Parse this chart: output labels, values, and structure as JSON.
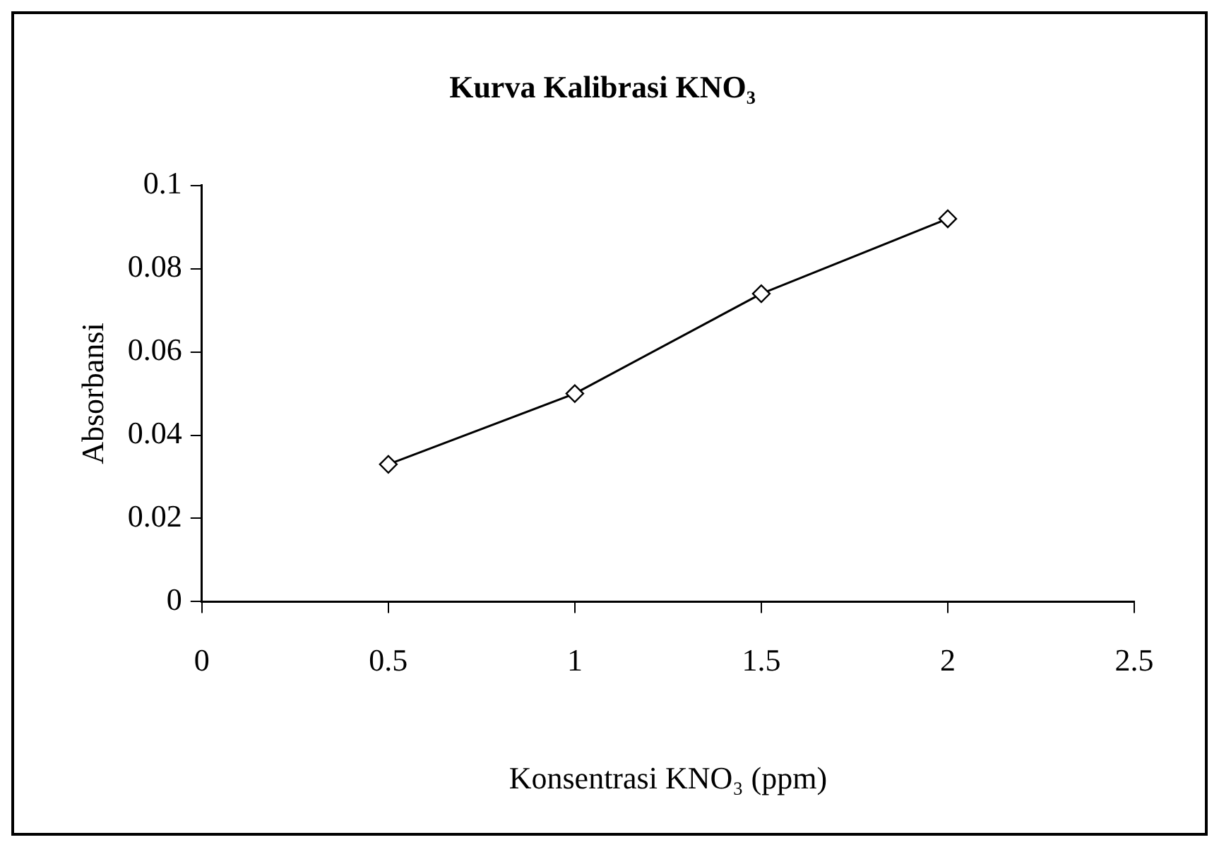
{
  "chart_data": {
    "type": "line",
    "title": "Kurva Kalibrasi KNO₃",
    "xlabel": "Konsentrasi KNO₃ (ppm)",
    "ylabel": "Absorbansi",
    "x": [
      0.5,
      1,
      1.5,
      2
    ],
    "series": [
      {
        "color": "#000000",
        "values": [
          0.033,
          0.05,
          0.074,
          0.092
        ]
      }
    ],
    "xlim": [
      0,
      2.5
    ],
    "xticks": [
      0,
      0.5,
      1,
      1.5,
      2,
      2.5
    ],
    "ylim": [
      0,
      0.1
    ],
    "yticks": [
      0,
      0.02,
      0.04,
      0.06,
      0.08,
      0.1
    ],
    "grid": false,
    "legend": false,
    "marker": "diamond",
    "line_style": "solid"
  }
}
